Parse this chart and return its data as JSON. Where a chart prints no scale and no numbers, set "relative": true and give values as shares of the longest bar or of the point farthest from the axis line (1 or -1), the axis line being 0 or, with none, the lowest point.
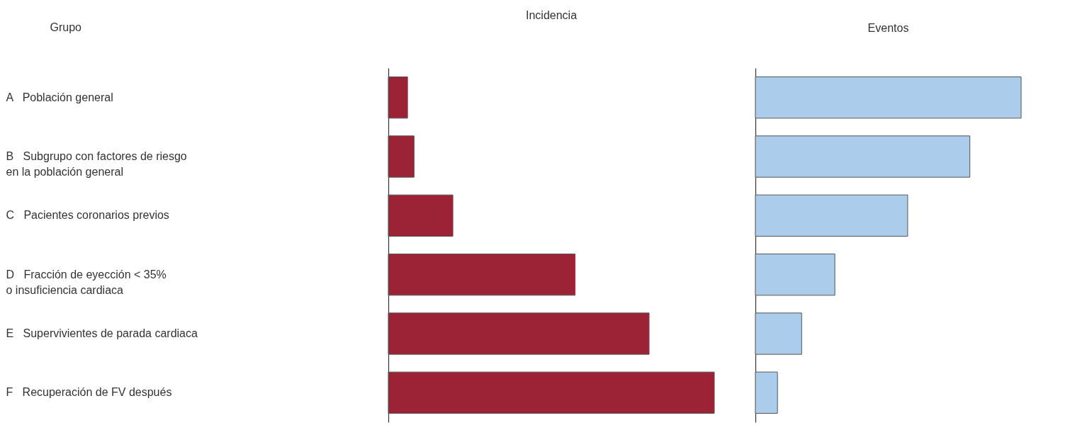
{
  "chart_data": [
    {
      "type": "bar",
      "orientation": "horizontal",
      "relative": true,
      "title": "Incidencia",
      "ylabel": "Grupo",
      "tick_labels": "y",
      "color": "#9b2335",
      "categories": [
        "A   Población general",
        "B   Subgrupo con factores de riesgo\n     en la población general",
        "C   Pacientes coronarios previos",
        "D   Fracción de eyección < 35%\n     o insuficiencia cardiaca",
        "E   Supervivientes de parada cardiaca",
        "F   Recuperación de FV después"
      ],
      "values": [
        0.059,
        0.079,
        0.198,
        0.573,
        0.8,
        1
      ]
    },
    {
      "type": "bar",
      "orientation": "horizontal",
      "relative": true,
      "title": "Eventos",
      "tick_labels": false,
      "color": "#abcdeb",
      "values": [
        1,
        0.807,
        0.573,
        0.299,
        0.174,
        0.083
      ]
    }
  ]
}
